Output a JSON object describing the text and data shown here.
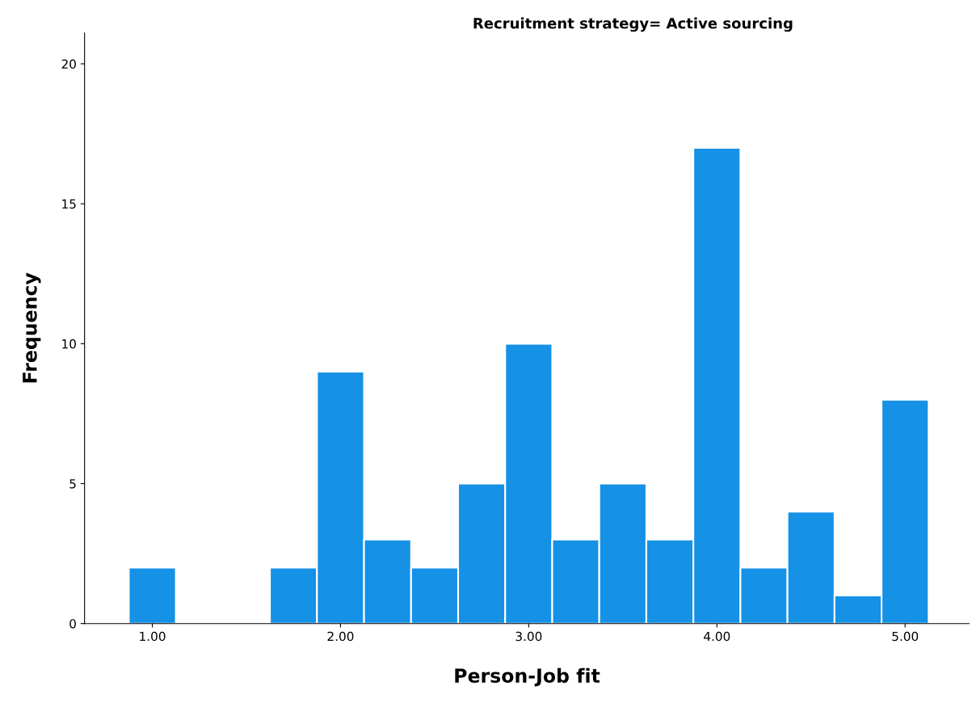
{
  "chart_data": {
    "type": "histogram",
    "title": "Recruitment strategy= Active sourcing",
    "xlabel": "Person-Job fit",
    "ylabel": "Frequency",
    "bins": [
      0.875,
      1.125,
      1.375,
      1.625,
      1.875,
      2.125,
      2.375,
      2.625,
      2.875,
      3.125,
      3.375,
      3.625,
      3.875,
      4.125,
      4.375,
      4.625,
      4.875,
      5.125
    ],
    "values": [
      2,
      0,
      0,
      2,
      9,
      3,
      2,
      5,
      10,
      3,
      5,
      3,
      17,
      2,
      4,
      1,
      8
    ],
    "color": "#1591e6",
    "xlim": [
      0.64,
      5.34
    ],
    "ylim": [
      0,
      21.1
    ],
    "xticks": [
      {
        "value": 1,
        "label": "1.00"
      },
      {
        "value": 2,
        "label": "2.00"
      },
      {
        "value": 3,
        "label": "3.00"
      },
      {
        "value": 4,
        "label": "4.00"
      },
      {
        "value": 5,
        "label": "5.00"
      }
    ],
    "yticks": [
      0,
      5,
      10,
      15,
      20
    ],
    "grid": false,
    "legend": false
  }
}
